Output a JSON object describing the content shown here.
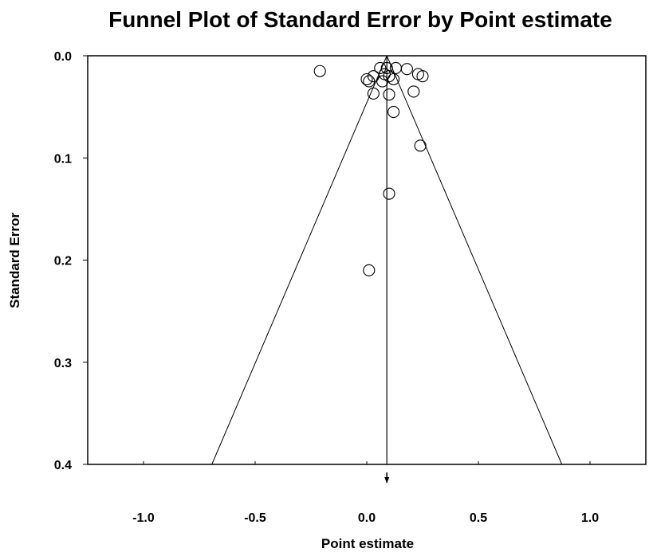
{
  "chart_data": {
    "type": "scatter",
    "title": "Funnel Plot of Standard Error by Point estimate",
    "xlabel": "Point estimate",
    "ylabel": "Standard Error",
    "xlim": [
      -1.25,
      1.25
    ],
    "ylim": [
      0.4,
      0.0
    ],
    "y_inverted": true,
    "x_ticks": [
      "-1.0",
      "-0.5",
      "0.0",
      "0.5",
      "1.0"
    ],
    "x_tick_values": [
      -1.0,
      -0.5,
      0.0,
      0.5,
      1.0
    ],
    "y_ticks": [
      "0.0",
      "0.1",
      "0.2",
      "0.3",
      "0.4"
    ],
    "y_tick_values": [
      0.0,
      0.1,
      0.2,
      0.3,
      0.4
    ],
    "grid": false,
    "pooled_estimate": 0.09,
    "funnel_z": 1.96,
    "points": [
      {
        "x": -0.21,
        "y": 0.015
      },
      {
        "x": 0.0,
        "y": 0.023
      },
      {
        "x": 0.01,
        "y": 0.025
      },
      {
        "x": 0.03,
        "y": 0.02
      },
      {
        "x": 0.06,
        "y": 0.012
      },
      {
        "x": 0.07,
        "y": 0.025
      },
      {
        "x": 0.08,
        "y": 0.018
      },
      {
        "x": 0.09,
        "y": 0.012
      },
      {
        "x": 0.13,
        "y": 0.012
      },
      {
        "x": 0.1,
        "y": 0.02
      },
      {
        "x": 0.12,
        "y": 0.023
      },
      {
        "x": 0.18,
        "y": 0.013
      },
      {
        "x": 0.23,
        "y": 0.018
      },
      {
        "x": 0.25,
        "y": 0.02
      },
      {
        "x": 0.03,
        "y": 0.037
      },
      {
        "x": 0.1,
        "y": 0.038
      },
      {
        "x": 0.21,
        "y": 0.035
      },
      {
        "x": 0.12,
        "y": 0.055
      },
      {
        "x": 0.24,
        "y": 0.088
      },
      {
        "x": 0.1,
        "y": 0.135
      },
      {
        "x": 0.01,
        "y": 0.21
      }
    ]
  }
}
